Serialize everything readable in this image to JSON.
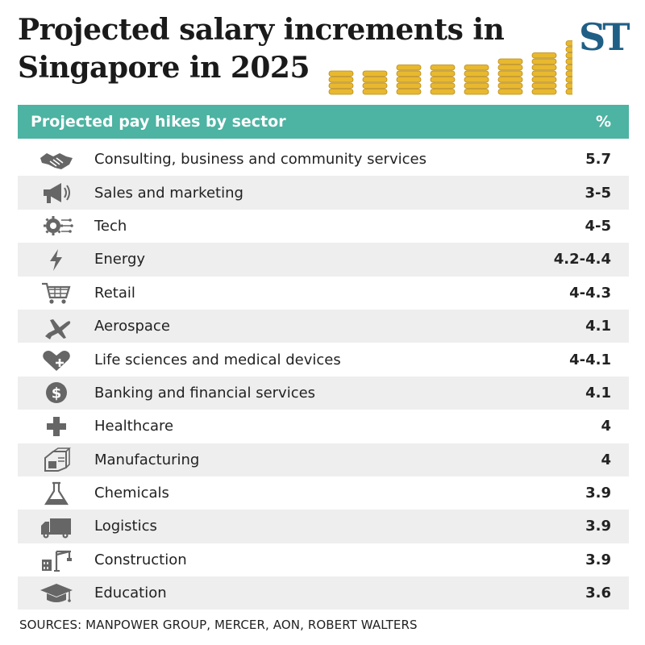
{
  "title_line1": "Projected salary increments in",
  "title_line2": "Singapore in 2025",
  "logo": "ST",
  "colors": {
    "header_bg": "#4db3a2",
    "logo": "#1f5f86",
    "coin": "#e8b82e",
    "stripe": "#eeeeee",
    "icon": "#666666"
  },
  "chart_data": {
    "type": "table",
    "title": "Projected salary increments in Singapore in 2025",
    "header": {
      "label": "Projected pay hikes by sector",
      "unit": "%"
    },
    "rows": [
      {
        "icon": "handshake-icon",
        "sector": "Consulting, business and community services",
        "value": "5.7"
      },
      {
        "icon": "megaphone-icon",
        "sector": "Sales and marketing",
        "value": "3-5"
      },
      {
        "icon": "gear-circuit-icon",
        "sector": "Tech",
        "value": "4-5"
      },
      {
        "icon": "lightning-icon",
        "sector": "Energy",
        "value": "4.2-4.4"
      },
      {
        "icon": "shopping-cart-icon",
        "sector": "Retail",
        "value": "4-4.3"
      },
      {
        "icon": "airplane-icon",
        "sector": "Aerospace",
        "value": "4.1"
      },
      {
        "icon": "heart-plus-icon",
        "sector": "Life sciences and medical devices",
        "value": "4-4.1"
      },
      {
        "icon": "dollar-coin-icon",
        "sector": "Banking and financial services",
        "value": "4.1"
      },
      {
        "icon": "medical-cross-icon",
        "sector": "Healthcare",
        "value": "4"
      },
      {
        "icon": "factory-machine-icon",
        "sector": "Manufacturing",
        "value": "4"
      },
      {
        "icon": "flask-icon",
        "sector": "Chemicals",
        "value": "3.9"
      },
      {
        "icon": "truck-icon",
        "sector": "Logistics",
        "value": "3.9"
      },
      {
        "icon": "crane-icon",
        "sector": "Construction",
        "value": "3.9"
      },
      {
        "icon": "graduation-cap-icon",
        "sector": "Education",
        "value": "3.6"
      }
    ],
    "source": "SOURCES: MANPOWER GROUP, MERCER, AON, ROBERT WALTERS"
  }
}
